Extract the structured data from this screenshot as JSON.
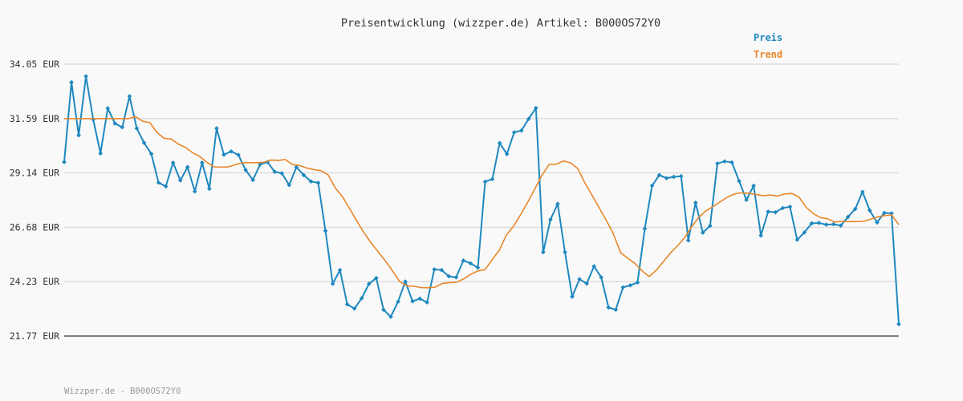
{
  "chart_data": {
    "type": "line",
    "title": "Preisentwicklung (wizzper.de) Artikel: B000OS72Y0",
    "footer": "Wizzper.de - B000OS72Y0",
    "ylabel": "",
    "xlabel": "",
    "ylim": [
      21.77,
      34.05
    ],
    "y_ticks": [
      "34.05 EUR",
      "31.59 EUR",
      "29.14 EUR",
      "26.68 EUR",
      "24.23 EUR",
      "21.77 EUR"
    ],
    "y_tick_values": [
      34.05,
      31.59,
      29.14,
      26.68,
      24.23,
      21.77
    ],
    "grid": true,
    "legend_position": "top-right",
    "series": [
      {
        "name": "Preis",
        "color": "#1e88c0",
        "values": [
          29.63,
          33.23,
          30.84,
          33.5,
          31.55,
          30.02,
          32.06,
          31.37,
          31.2,
          32.6,
          31.15,
          30.5,
          30.0,
          28.7,
          28.53,
          29.6,
          28.8,
          29.4,
          28.3,
          29.6,
          28.42,
          31.15,
          29.96,
          30.11,
          29.95,
          29.27,
          28.82,
          29.52,
          29.63,
          29.19,
          29.12,
          28.59,
          29.4,
          29.04,
          28.75,
          28.69,
          26.52,
          24.13,
          24.75,
          23.2,
          23.01,
          23.48,
          24.13,
          24.39,
          22.96,
          22.64,
          23.32,
          24.23,
          23.34,
          23.46,
          23.29,
          24.78,
          24.75,
          24.47,
          24.42,
          25.18,
          25.05,
          24.86,
          28.74,
          28.86,
          30.49,
          29.99,
          30.97,
          31.05,
          31.58,
          32.07,
          25.56,
          27.03,
          27.74,
          25.56,
          23.55,
          24.34,
          24.14,
          24.92,
          24.42,
          23.06,
          22.96,
          23.97,
          24.06,
          24.19,
          26.62,
          28.56,
          29.04,
          28.9,
          28.96,
          28.99,
          26.09,
          27.79,
          26.44,
          26.75,
          29.56,
          29.66,
          29.61,
          28.77,
          27.92,
          28.56,
          26.31,
          27.39,
          27.36,
          27.55,
          27.61,
          26.12,
          26.45,
          26.86,
          26.88,
          26.8,
          26.82,
          26.76,
          27.15,
          27.51,
          28.28,
          27.44,
          26.9,
          27.33,
          27.31,
          22.31
        ]
      },
      {
        "name": "Trend",
        "color": "#e8872a",
        "values": [
          31.59,
          31.59,
          31.59,
          31.59,
          31.59,
          31.59,
          31.59,
          31.59,
          31.59,
          31.59,
          31.68,
          31.47,
          31.41,
          30.97,
          30.7,
          30.67,
          30.44,
          30.29,
          30.05,
          29.88,
          29.62,
          29.41,
          29.4,
          29.41,
          29.51,
          29.6,
          29.6,
          29.6,
          29.62,
          29.72,
          29.7,
          29.74,
          29.52,
          29.47,
          29.36,
          29.29,
          29.24,
          29.05,
          28.46,
          28.07,
          27.53,
          26.98,
          26.45,
          25.99,
          25.58,
          25.17,
          24.73,
          24.24,
          24.04,
          24.02,
          23.96,
          23.95,
          23.98,
          24.14,
          24.18,
          24.2,
          24.35,
          24.56,
          24.71,
          24.77,
          25.22,
          25.65,
          26.34,
          26.73,
          27.26,
          27.83,
          28.43,
          29.05,
          29.52,
          29.53,
          29.68,
          29.59,
          29.33,
          28.68,
          28.13,
          27.56,
          26.99,
          26.38,
          25.53,
          25.29,
          25.05,
          24.72,
          24.46,
          24.74,
          25.13,
          25.53,
          25.85,
          26.22,
          26.72,
          27.15,
          27.43,
          27.63,
          27.84,
          28.05,
          28.19,
          28.24,
          28.22,
          28.16,
          28.11,
          28.14,
          28.09,
          28.19,
          28.21,
          28.05,
          27.59,
          27.3,
          27.12,
          27.07,
          26.92,
          26.95,
          26.94,
          26.94,
          26.95,
          27.04,
          27.15,
          27.21,
          27.24,
          26.8
        ]
      }
    ]
  }
}
